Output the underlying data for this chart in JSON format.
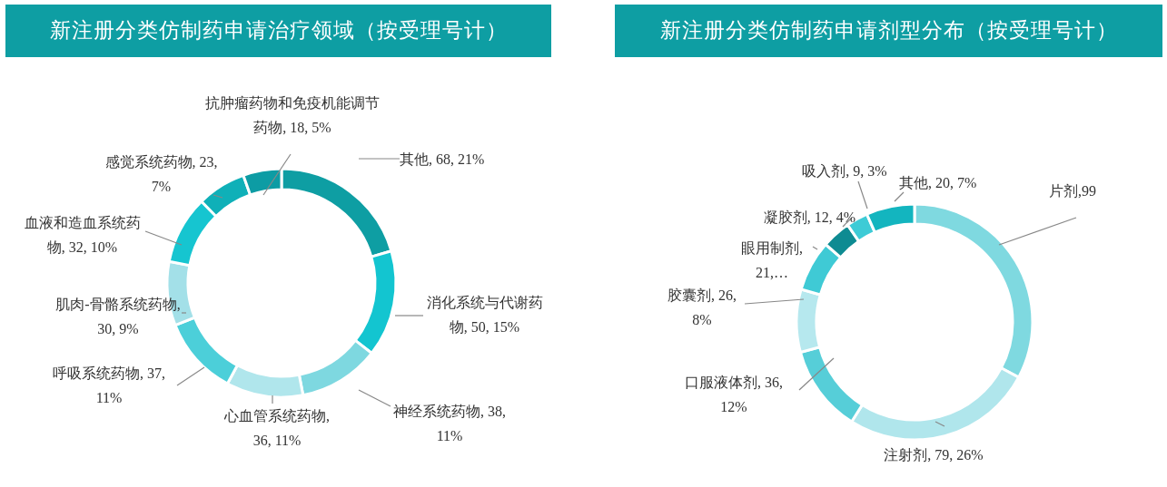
{
  "chart_data": [
    {
      "type": "donut",
      "title": "新注册分类仿制药申请治疗领域（按受理号计）",
      "categories": [
        "其他",
        "消化系统与代谢药物",
        "神经系统药物",
        "心血管系统药物",
        "呼吸系统药物",
        "肌肉-骨骼系统药物",
        "血液和造血系统药物",
        "感觉系统药物",
        "抗肿瘤药物和免疫机能调节药物"
      ],
      "values": [
        68,
        50,
        38,
        36,
        37,
        30,
        32,
        23,
        18
      ],
      "value_labels": [
        ", 68, 21%",
        ", 50, 15%",
        ", 38, 11%",
        ", 36, 11%",
        ", 37, 11%",
        ", 30, 9%",
        ", 32, 10%",
        ", 23, 7%",
        ", 18, 5%"
      ],
      "colors": [
        "#0e9ea3",
        "#13c5d0",
        "#7ed8e0",
        "#b0e6ec",
        "#4ccfd9",
        "#a3e0e8",
        "#16c5d0",
        "#0fb0b8",
        "#0d9ca4"
      ]
    },
    {
      "type": "donut",
      "title": "新注册分类仿制药申请剂型分布（按受理号计）",
      "categories": [
        "片剂",
        "注射剂",
        "口服液体剂",
        "胶囊剂",
        "眼用制剂",
        "凝胶剂",
        "吸入剂",
        "其他"
      ],
      "values": [
        99,
        79,
        36,
        26,
        21,
        12,
        9,
        20
      ],
      "value_labels": [
        ",99",
        ", 79, 26%",
        ", 36, 12%",
        ", 26, 8%",
        ", 21,…",
        ", 12, 4%",
        ", 9, 3%",
        ", 20, 7%"
      ],
      "colors": [
        "#7fd9e0",
        "#b0e6ec",
        "#56ced8",
        "#b6e8ee",
        "#3fcad5",
        "#0e8b92",
        "#3dcbd6",
        "#13b5bf"
      ]
    }
  ]
}
